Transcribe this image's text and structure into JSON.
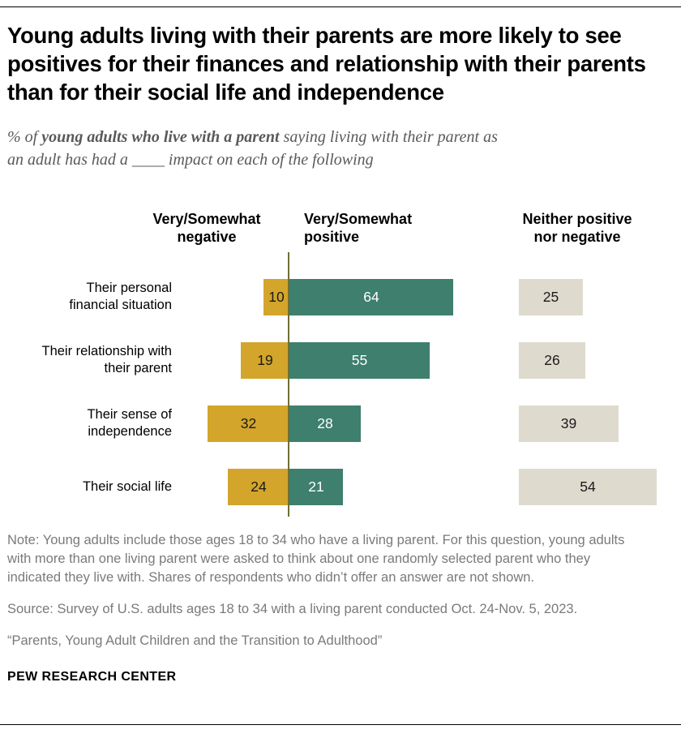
{
  "title": "Young adults living with their parents are more likely to see positives for their finances and relationship with their parents than for their social life and independence",
  "subtitle": {
    "prefix": "% of ",
    "bold": "young adults who live with a parent",
    "suffix": " saying living with their parent as an adult has had a ____ impact on each of the following"
  },
  "chart_data": {
    "type": "bar",
    "layout": "diverging-horizontal",
    "categories": [
      "Their personal financial situation",
      "Their relationship with their parent",
      "Their sense of independence",
      "Their social life"
    ],
    "series": [
      {
        "name": "Very/Somewhat negative",
        "values": [
          10,
          19,
          32,
          24
        ],
        "color": "#d3a52b",
        "label_color": "#1a1a1a"
      },
      {
        "name": "Very/Somewhat positive",
        "values": [
          64,
          55,
          28,
          21
        ],
        "color": "#3e7f6d",
        "label_color": "#ffffff"
      },
      {
        "name": "Neither positive nor negative",
        "values": [
          25,
          26,
          39,
          54
        ],
        "color": "#dedbce",
        "label_color": "#1a1a1a"
      }
    ],
    "axis_color": "#6e7034",
    "xlim": [
      0,
      64
    ],
    "grid": false,
    "legend_position": "column-headers"
  },
  "notes": {
    "note": "Note: Young adults include those ages 18 to 34 who have a living parent. For this question, young adults with more than one living parent were asked to think about one randomly selected parent who they indicated they live with. Shares of respondents who didn’t offer an answer are not shown.",
    "source": "Source: Survey of U.S. adults ages 18 to 34 with a living parent conducted Oct. 24-Nov. 5, 2023.",
    "quote": "“Parents, Young Adult Children and the Transition to Adulthood”"
  },
  "footer": "PEW RESEARCH CENTER"
}
